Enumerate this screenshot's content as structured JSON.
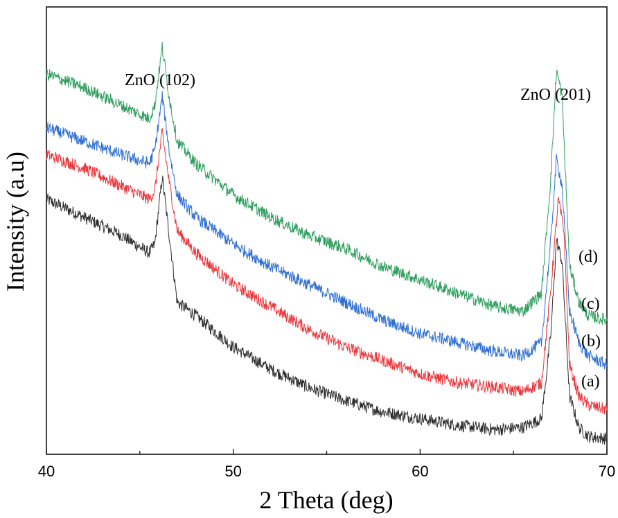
{
  "chart_data": {
    "type": "line",
    "xlabel": "2 Theta (deg)",
    "ylabel": "Intensity (a.u)",
    "xlim": [
      40,
      70
    ],
    "x_ticks": [
      40,
      50,
      60,
      70
    ],
    "y_ticks_shown": false,
    "grid": false,
    "legend": "none",
    "annotations": [
      {
        "text": "ZnO (102)",
        "x": 46.3
      },
      {
        "text": "ZnO (201)",
        "x": 67.3
      }
    ],
    "series": [
      {
        "name": "(a)",
        "color": "#2f2f2f",
        "points": [
          [
            40,
            0.57
          ],
          [
            42,
            0.53
          ],
          [
            44,
            0.49
          ],
          [
            45.5,
            0.45
          ],
          [
            45.8,
            0.47
          ],
          [
            46.2,
            0.62
          ],
          [
            46.6,
            0.48
          ],
          [
            47,
            0.34
          ],
          [
            48,
            0.31
          ],
          [
            50,
            0.24
          ],
          [
            52,
            0.19
          ],
          [
            54,
            0.15
          ],
          [
            56,
            0.12
          ],
          [
            58,
            0.095
          ],
          [
            60,
            0.08
          ],
          [
            62,
            0.065
          ],
          [
            64,
            0.055
          ],
          [
            65.5,
            0.06
          ],
          [
            66.5,
            0.08
          ],
          [
            67,
            0.27
          ],
          [
            67.3,
            0.48
          ],
          [
            67.6,
            0.43
          ],
          [
            68,
            0.13
          ],
          [
            68.5,
            0.06
          ],
          [
            69,
            0.04
          ],
          [
            70,
            0.035
          ]
        ]
      },
      {
        "name": "(b)",
        "color": "#e8383d",
        "points": [
          [
            40,
            0.67
          ],
          [
            42,
            0.64
          ],
          [
            44,
            0.6
          ],
          [
            45.5,
            0.57
          ],
          [
            45.8,
            0.59
          ],
          [
            46.2,
            0.72
          ],
          [
            46.6,
            0.6
          ],
          [
            47,
            0.5
          ],
          [
            48,
            0.45
          ],
          [
            50,
            0.38
          ],
          [
            52,
            0.33
          ],
          [
            54,
            0.28
          ],
          [
            56,
            0.24
          ],
          [
            58,
            0.21
          ],
          [
            60,
            0.18
          ],
          [
            62,
            0.16
          ],
          [
            64,
            0.15
          ],
          [
            65.5,
            0.14
          ],
          [
            66.5,
            0.16
          ],
          [
            67,
            0.37
          ],
          [
            67.4,
            0.57
          ],
          [
            67.7,
            0.5
          ],
          [
            68,
            0.2
          ],
          [
            68.5,
            0.13
          ],
          [
            69,
            0.11
          ],
          [
            70,
            0.1
          ]
        ]
      },
      {
        "name": "(c)",
        "color": "#2f6fd1",
        "points": [
          [
            40,
            0.73
          ],
          [
            42,
            0.7
          ],
          [
            44,
            0.67
          ],
          [
            45.5,
            0.65
          ],
          [
            45.8,
            0.68
          ],
          [
            46.2,
            0.8
          ],
          [
            46.6,
            0.67
          ],
          [
            47,
            0.58
          ],
          [
            48,
            0.53
          ],
          [
            50,
            0.47
          ],
          [
            52,
            0.42
          ],
          [
            54,
            0.38
          ],
          [
            56,
            0.34
          ],
          [
            58,
            0.3
          ],
          [
            60,
            0.27
          ],
          [
            62,
            0.25
          ],
          [
            64,
            0.23
          ],
          [
            65.5,
            0.22
          ],
          [
            66.5,
            0.25
          ],
          [
            67,
            0.48
          ],
          [
            67.3,
            0.66
          ],
          [
            67.6,
            0.6
          ],
          [
            68,
            0.32
          ],
          [
            68.5,
            0.25
          ],
          [
            69,
            0.22
          ],
          [
            70,
            0.2
          ]
        ]
      },
      {
        "name": "(d)",
        "color": "#2e9e5e",
        "points": [
          [
            40,
            0.85
          ],
          [
            42,
            0.82
          ],
          [
            44,
            0.78
          ],
          [
            45.5,
            0.75
          ],
          [
            45.8,
            0.78
          ],
          [
            46.2,
            0.91
          ],
          [
            46.6,
            0.79
          ],
          [
            47,
            0.7
          ],
          [
            48,
            0.65
          ],
          [
            50,
            0.58
          ],
          [
            52,
            0.53
          ],
          [
            54,
            0.49
          ],
          [
            56,
            0.46
          ],
          [
            58,
            0.42
          ],
          [
            60,
            0.39
          ],
          [
            62,
            0.36
          ],
          [
            64,
            0.33
          ],
          [
            65.5,
            0.32
          ],
          [
            66.5,
            0.36
          ],
          [
            67,
            0.62
          ],
          [
            67.3,
            0.86
          ],
          [
            67.6,
            0.8
          ],
          [
            68,
            0.42
          ],
          [
            68.5,
            0.34
          ],
          [
            69,
            0.31
          ],
          [
            70,
            0.3
          ]
        ]
      }
    ]
  }
}
